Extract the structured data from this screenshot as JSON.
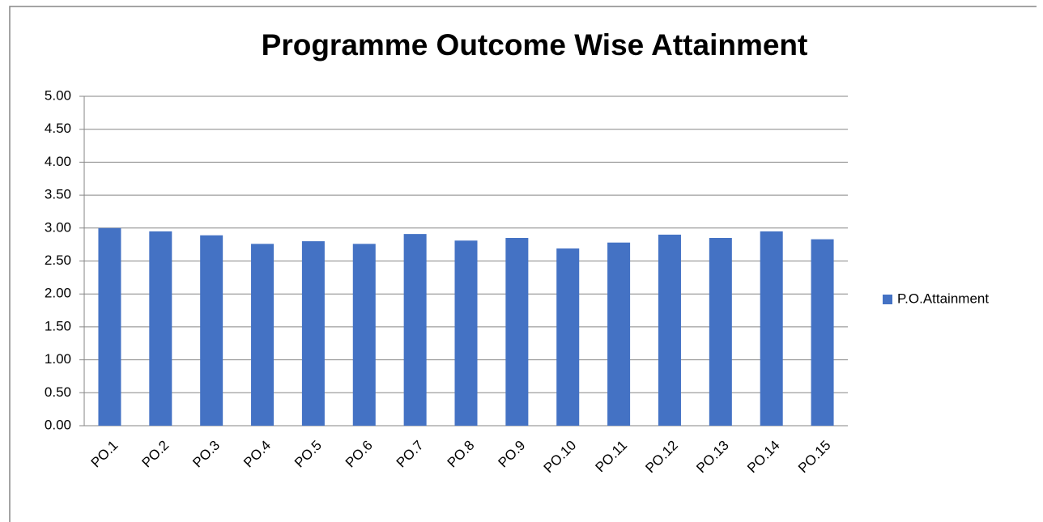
{
  "chart_data": {
    "type": "bar",
    "title": "Programme Outcome Wise Attainment",
    "categories": [
      "PO.1",
      "PO.2",
      "PO.3",
      "PO.4",
      "PO.5",
      "PO.6",
      "PO.7",
      "PO.8",
      "PO.9",
      "PO.10",
      "PO.11",
      "PO.12",
      "PO.13",
      "PO.14",
      "PO.15"
    ],
    "series": [
      {
        "name": "P.O.Attainment",
        "color": "#4472c4",
        "values": [
          3.0,
          2.95,
          2.89,
          2.76,
          2.8,
          2.76,
          2.91,
          2.81,
          2.85,
          2.69,
          2.78,
          2.9,
          2.85,
          2.95,
          2.83
        ]
      }
    ],
    "ylim": [
      0,
      5
    ],
    "yticks": [
      {
        "value": 0,
        "label": "0.00"
      },
      {
        "value": 0.5,
        "label": "0.50"
      },
      {
        "value": 1,
        "label": "1.00"
      },
      {
        "value": 1.5,
        "label": "1.50"
      },
      {
        "value": 2,
        "label": "2.00"
      },
      {
        "value": 2.5,
        "label": "2.50"
      },
      {
        "value": 3,
        "label": "3.00"
      },
      {
        "value": 3.5,
        "label": "3.50"
      },
      {
        "value": 4,
        "label": "4.00"
      },
      {
        "value": 4.5,
        "label": "4.50"
      },
      {
        "value": 5,
        "label": "5.00"
      }
    ],
    "grid": true,
    "legend": "right"
  }
}
